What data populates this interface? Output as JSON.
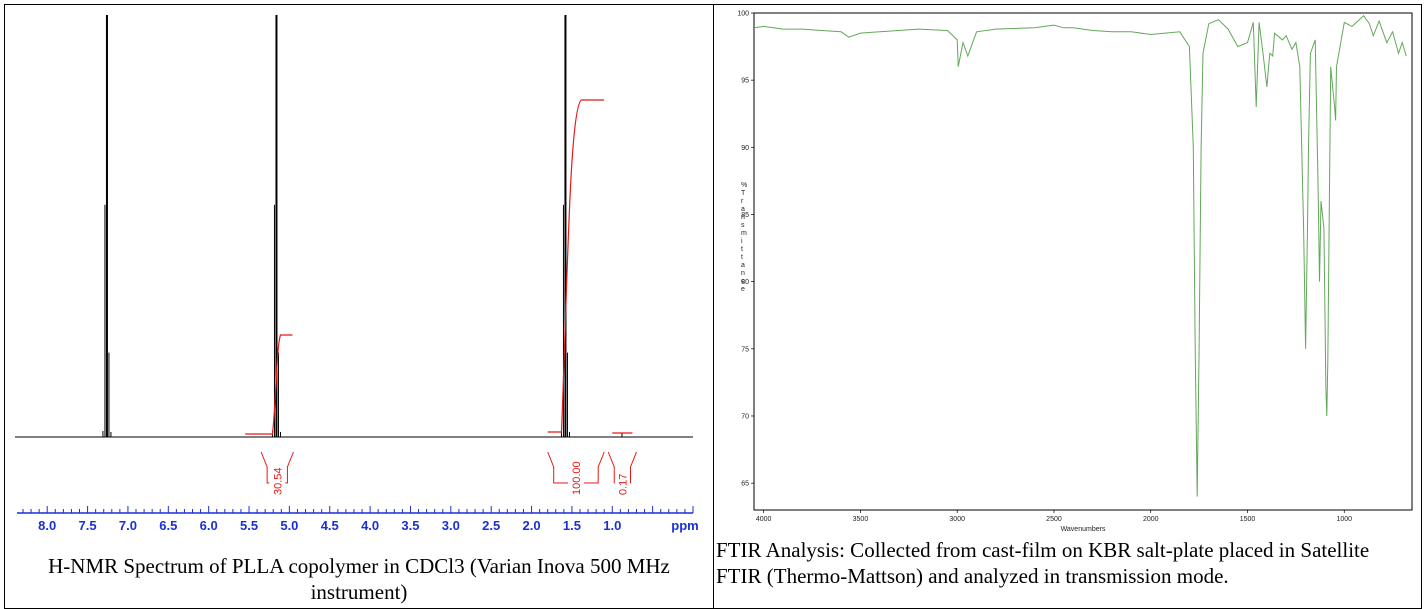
{
  "nmr": {
    "caption": "H-NMR Spectrum of PLLA copolymer in CDCl3 (Varian Inova 500 MHz instrument)",
    "chart_data": {
      "type": "line",
      "xlabel": "ppm",
      "xlim": [
        8.3,
        0.0
      ],
      "reversed_x": true,
      "tick_labels": [
        "8.0",
        "7.5",
        "7.0",
        "6.5",
        "6.0",
        "5.5",
        "5.0",
        "4.5",
        "4.0",
        "3.5",
        "3.0",
        "2.5",
        "2.0",
        "1.5",
        "1.0",
        "ppm"
      ],
      "ticks": [
        8.0,
        7.5,
        7.0,
        6.5,
        6.0,
        5.5,
        5.0,
        4.5,
        4.0,
        3.5,
        3.0,
        2.5,
        2.0,
        1.5,
        1.0
      ],
      "peaks": [
        {
          "ppm": 7.26,
          "height": 1.0
        },
        {
          "ppm": 5.16,
          "height": 1.0
        },
        {
          "ppm": 1.58,
          "height": 1.0
        },
        {
          "ppm": 0.88,
          "height": 0.01
        }
      ],
      "integrals": [
        {
          "label": "30.54",
          "from": 5.35,
          "to": 4.95
        },
        {
          "label": "100.00",
          "from": 1.8,
          "to": 1.1
        },
        {
          "label": "0.17",
          "from": 1.05,
          "to": 0.7
        }
      ],
      "colors": {
        "spectrum": "#000000",
        "integral": "#e81818",
        "axis": "#1a2fd6"
      }
    }
  },
  "ftir": {
    "caption": "FTIR Analysis: Collected from cast-film on KBR salt-plate placed in Satellite FTIR (Thermo-Mattson) and analyzed in transmission mode.",
    "chart_data": {
      "type": "line",
      "xlabel": "Wavenumbers",
      "ylabel": "% Transmittance",
      "xlim": [
        4050,
        650
      ],
      "ylim": [
        63,
        100
      ],
      "x_ticks": [
        4000,
        3500,
        3000,
        2500,
        2000,
        1500,
        1000
      ],
      "y_ticks": [
        65,
        70,
        75,
        80,
        85,
        90,
        95,
        100
      ],
      "series": [
        {
          "x": [
            4050,
            4000,
            3900,
            3800,
            3700,
            3600,
            3560,
            3500,
            3400,
            3200,
            3050,
            3000,
            2995,
            2970,
            2945,
            2900,
            2800,
            2600,
            2500,
            2450,
            2400,
            2300,
            2200,
            2100,
            2000,
            1850,
            1800,
            1780,
            1770,
            1760,
            1750,
            1740,
            1730,
            1700,
            1650,
            1600,
            1550,
            1500,
            1470,
            1455,
            1440,
            1420,
            1400,
            1385,
            1370,
            1360,
            1320,
            1300,
            1270,
            1250,
            1230,
            1210,
            1200,
            1190,
            1185,
            1175,
            1150,
            1135,
            1128,
            1120,
            1105,
            1095,
            1090,
            1085,
            1070,
            1050,
            1045,
            1040,
            1000,
            960,
            900,
            870,
            850,
            820,
            780,
            750,
            720,
            700,
            680
          ],
          "y": [
            98.9,
            99.0,
            98.8,
            98.8,
            98.7,
            98.6,
            98.2,
            98.5,
            98.6,
            98.8,
            98.7,
            98.0,
            96.0,
            97.8,
            96.8,
            98.6,
            98.8,
            98.9,
            99.1,
            98.9,
            98.9,
            98.7,
            98.6,
            98.6,
            98.4,
            98.6,
            97.5,
            90.0,
            75.0,
            64.0,
            75.0,
            90.0,
            97.0,
            99.2,
            99.5,
            98.8,
            97.5,
            97.8,
            99.3,
            93.0,
            99.3,
            97.0,
            94.5,
            97.0,
            96.8,
            98.5,
            98.0,
            98.3,
            97.3,
            97.8,
            96.0,
            84.0,
            75.0,
            84.0,
            90.0,
            97.0,
            98.0,
            87.0,
            80.0,
            86.0,
            84.0,
            72.0,
            70.0,
            74.0,
            96.0,
            93.0,
            92.0,
            96.0,
            99.3,
            99.0,
            99.8,
            99.2,
            98.3,
            99.4,
            97.8,
            98.6,
            97.0,
            97.8,
            96.8
          ]
        }
      ],
      "colors": {
        "line": "#63a85a",
        "axis": "#000000"
      }
    }
  }
}
